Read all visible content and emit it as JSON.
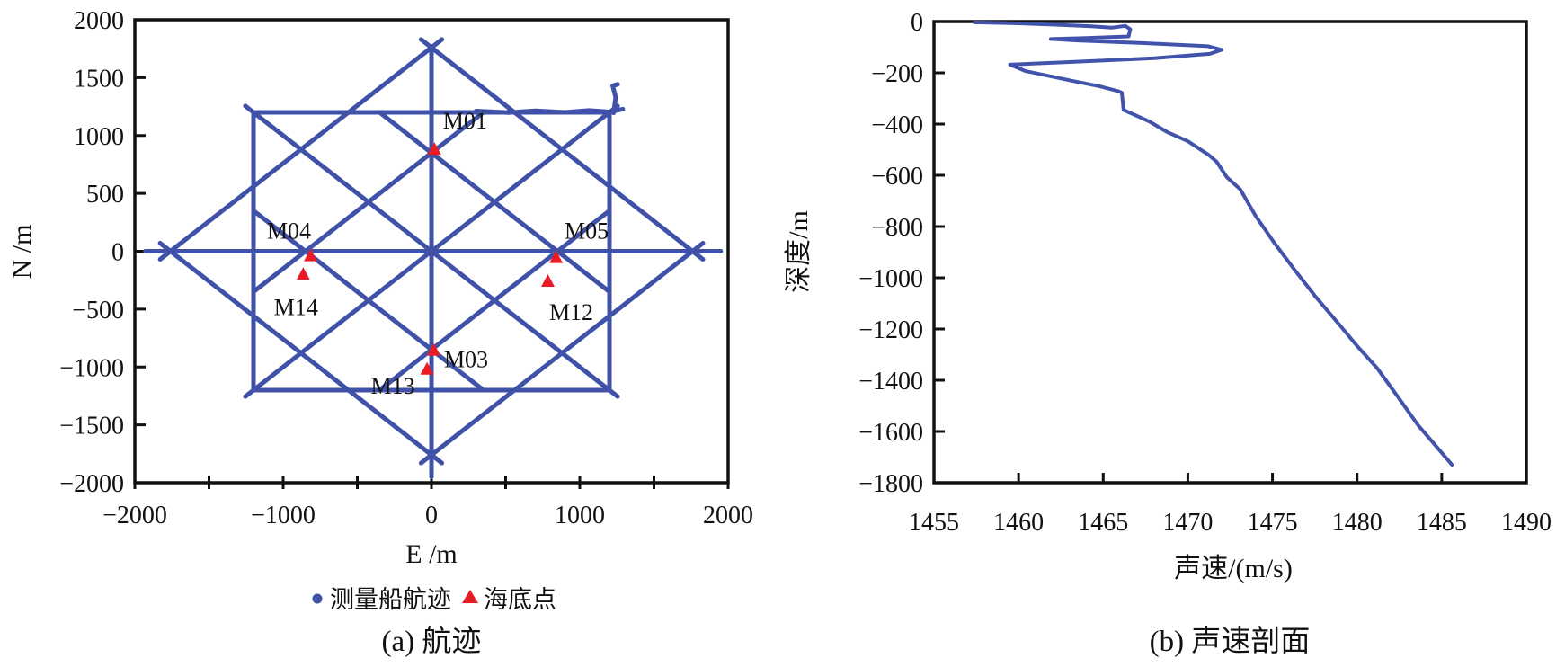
{
  "figure": {
    "background": "#ffffff",
    "colors": {
      "track": "#4052a8",
      "marker": "#e91c26",
      "profile": "#4253ac",
      "axis": "#111111",
      "text": "#111111"
    }
  },
  "chart_data": [
    {
      "type": "scatter",
      "name": "ship-track-plot",
      "caption": "(a) 航迹",
      "xlabel": "E /m",
      "ylabel": "N /m",
      "xlim": [
        -2000,
        2000
      ],
      "ylim": [
        -2000,
        2000
      ],
      "grid": false,
      "xticks": [
        {
          "v": -2000,
          "label": "−2000"
        },
        {
          "v": -1500,
          "label": ""
        },
        {
          "v": -1000,
          "label": "−1000"
        },
        {
          "v": -500,
          "label": ""
        },
        {
          "v": 0,
          "label": "0"
        },
        {
          "v": 500,
          "label": ""
        },
        {
          "v": 1000,
          "label": "1000"
        },
        {
          "v": 1500,
          "label": ""
        },
        {
          "v": 2000,
          "label": "2000"
        }
      ],
      "yticks": [
        {
          "v": 2000,
          "label": "2000"
        },
        {
          "v": 1500,
          "label": "1500"
        },
        {
          "v": 1000,
          "label": "1000"
        },
        {
          "v": 500,
          "label": "500"
        },
        {
          "v": 0,
          "label": "0"
        },
        {
          "v": -500,
          "label": "−500"
        },
        {
          "v": -1000,
          "label": "−1000"
        },
        {
          "v": -1500,
          "label": "−1500"
        },
        {
          "v": -2000,
          "label": "−2000"
        }
      ],
      "legend": [
        {
          "symbol": "dot",
          "label": "测量船航迹"
        },
        {
          "symbol": "triangle",
          "label": "海底点"
        }
      ],
      "track_lines": [
        [
          [
            -1200,
            1200
          ],
          [
            1200,
            1200
          ],
          [
            1200,
            -1200
          ],
          [
            -1200,
            -1200
          ],
          [
            -1200,
            1200
          ]
        ],
        [
          [
            -1830,
            -70
          ],
          [
            70,
            1830
          ]
        ],
        [
          [
            -70,
            1830
          ],
          [
            1830,
            -70
          ]
        ],
        [
          [
            1830,
            70
          ],
          [
            -70,
            -1830
          ]
        ],
        [
          [
            70,
            -1830
          ],
          [
            -1830,
            70
          ]
        ],
        [
          [
            -1255,
            -1255
          ],
          [
            1255,
            1255
          ]
        ],
        [
          [
            -1255,
            1255
          ],
          [
            1255,
            -1255
          ]
        ],
        [
          [
            -350,
            1200
          ],
          [
            1200,
            -350
          ]
        ],
        [
          [
            350,
            1200
          ],
          [
            -1200,
            -350
          ]
        ],
        [
          [
            -350,
            -1200
          ],
          [
            1200,
            350
          ]
        ],
        [
          [
            350,
            -1200
          ],
          [
            -1200,
            350
          ]
        ],
        [
          [
            -1930,
            0
          ],
          [
            1950,
            0
          ]
        ],
        [
          [
            0,
            1770
          ],
          [
            0,
            -1950
          ]
        ],
        [
          [
            1228,
            1195
          ],
          [
            1242,
            1330
          ],
          [
            1222,
            1430
          ],
          [
            1256,
            1442
          ]
        ],
        [
          [
            300,
            1212
          ],
          [
            520,
            1198
          ],
          [
            700,
            1214
          ],
          [
            900,
            1200
          ],
          [
            1060,
            1216
          ],
          [
            1200,
            1204
          ],
          [
            1290,
            1228
          ]
        ]
      ],
      "markers": [
        {
          "id": "M01",
          "e": 20,
          "n": 880,
          "lx": 34,
          "ly": -32
        },
        {
          "id": "M04",
          "e": -815,
          "n": -40,
          "lx": -24,
          "ly": -28
        },
        {
          "id": "M14",
          "e": -865,
          "n": -200,
          "lx": -8,
          "ly": 36
        },
        {
          "id": "M05",
          "e": 840,
          "n": -55,
          "lx": 34,
          "ly": -30
        },
        {
          "id": "M12",
          "e": 785,
          "n": -260,
          "lx": 26,
          "ly": 34
        },
        {
          "id": "M03",
          "e": 15,
          "n": -855,
          "lx": 36,
          "ly": 10
        },
        {
          "id": "M13",
          "e": -30,
          "n": -1020,
          "lx": -38,
          "ly": 18
        }
      ]
    },
    {
      "type": "line",
      "name": "sound-velocity-profile",
      "caption": "(b) 声速剖面",
      "xlabel": "声速/(m/s)",
      "ylabel": "深度/m",
      "xlim": [
        1455,
        1490
      ],
      "ylim": [
        -1800,
        0
      ],
      "grid": false,
      "xticks": [
        {
          "v": 1455,
          "label": "1455"
        },
        {
          "v": 1460,
          "label": "1460"
        },
        {
          "v": 1465,
          "label": "1465"
        },
        {
          "v": 1470,
          "label": "1470"
        },
        {
          "v": 1475,
          "label": "1475"
        },
        {
          "v": 1480,
          "label": "1480"
        },
        {
          "v": 1485,
          "label": "1485"
        },
        {
          "v": 1490,
          "label": "1490"
        }
      ],
      "yticks": [
        {
          "v": 0,
          "label": "0"
        },
        {
          "v": -200,
          "label": "−200"
        },
        {
          "v": -400,
          "label": "−400"
        },
        {
          "v": -600,
          "label": "−600"
        },
        {
          "v": -800,
          "label": "−800"
        },
        {
          "v": -1000,
          "label": "−1000"
        },
        {
          "v": -1200,
          "label": "−1200"
        },
        {
          "v": -1400,
          "label": "−1400"
        },
        {
          "v": -1600,
          "label": "−1600"
        },
        {
          "v": -1800,
          "label": "−1800"
        }
      ],
      "series": [
        {
          "name": "声速剖面",
          "points": [
            [
              1457.4,
              -3
            ],
            [
              1459.5,
              -6
            ],
            [
              1462.0,
              -12
            ],
            [
              1464.2,
              -18
            ],
            [
              1465.5,
              -24
            ],
            [
              1466.3,
              -17
            ],
            [
              1466.6,
              -30
            ],
            [
              1466.5,
              -58
            ],
            [
              1464.0,
              -64
            ],
            [
              1461.9,
              -68
            ],
            [
              1463.5,
              -74
            ],
            [
              1467.1,
              -83
            ],
            [
              1471.2,
              -96
            ],
            [
              1472.0,
              -110
            ],
            [
              1471.3,
              -126
            ],
            [
              1468.0,
              -143
            ],
            [
              1463.0,
              -158
            ],
            [
              1459.5,
              -168
            ],
            [
              1460.4,
              -193
            ],
            [
              1463.2,
              -232
            ],
            [
              1464.8,
              -253
            ],
            [
              1465.9,
              -272
            ],
            [
              1466.1,
              -278
            ],
            [
              1466.2,
              -345
            ],
            [
              1467.7,
              -389
            ],
            [
              1468.8,
              -432
            ],
            [
              1470.0,
              -467
            ],
            [
              1471.2,
              -519
            ],
            [
              1471.7,
              -547
            ],
            [
              1472.3,
              -607
            ],
            [
              1473.1,
              -655
            ],
            [
              1474.0,
              -758
            ],
            [
              1475.1,
              -863
            ],
            [
              1476.3,
              -968
            ],
            [
              1477.5,
              -1070
            ],
            [
              1478.9,
              -1179
            ],
            [
              1480.0,
              -1266
            ],
            [
              1481.2,
              -1354
            ],
            [
              1482.4,
              -1464
            ],
            [
              1483.6,
              -1575
            ],
            [
              1484.7,
              -1660
            ],
            [
              1485.6,
              -1730
            ]
          ]
        }
      ]
    }
  ]
}
